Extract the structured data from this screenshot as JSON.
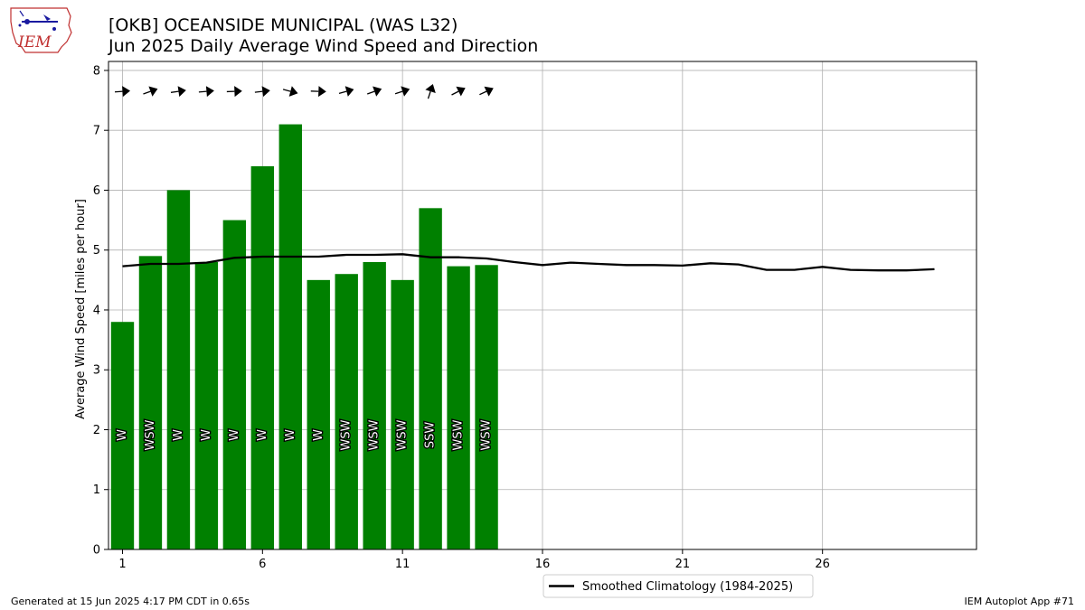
{
  "header": {
    "title_line1": "[OKB] OCEANSIDE MUNICIPAL (WAS L32)",
    "title_line2": "Jun 2025 Daily Average Wind Speed and Direction"
  },
  "logo": {
    "text": "IEM",
    "icon": "iem-iowa-logo-icon"
  },
  "footer": {
    "generated": "Generated at 15 Jun 2025 4:17 PM CDT in 0.65s",
    "app": "IEM Autoplot App #71"
  },
  "colors": {
    "bar": "#008000",
    "climo_line": "#000000",
    "grid": "#b0b0b0"
  },
  "chart_data": {
    "type": "bar",
    "ylabel": "Average Wind Speed [miles per hour]",
    "xlabel": "",
    "xlim": [
      0.5,
      31.5
    ],
    "ylim": [
      0,
      8.15
    ],
    "xticks": [
      1,
      6,
      11,
      16,
      21,
      26
    ],
    "yticks": [
      0,
      1,
      2,
      3,
      4,
      5,
      6,
      7,
      8
    ],
    "grid": true,
    "legend_placement": "bottom-center",
    "bars": {
      "days": [
        1,
        2,
        3,
        4,
        5,
        6,
        7,
        8,
        9,
        10,
        11,
        12,
        13,
        14
      ],
      "values": [
        3.8,
        4.9,
        6.0,
        4.8,
        5.5,
        6.4,
        7.1,
        4.5,
        4.6,
        4.8,
        4.5,
        5.7,
        4.73,
        4.75
      ],
      "direction_labels": [
        "W",
        "WSW",
        "W",
        "W",
        "W",
        "W",
        "W",
        "W",
        "WSW",
        "WSW",
        "WSW",
        "SSW",
        "WSW",
        "WSW"
      ],
      "arrow_direction_deg": [
        266,
        250,
        262,
        265,
        268,
        263,
        285,
        272,
        255,
        250,
        252,
        198,
        243,
        245
      ]
    },
    "series": [
      {
        "name": "Smoothed Climatology (1984-2025)",
        "x": [
          1,
          2,
          3,
          4,
          5,
          6,
          7,
          8,
          9,
          10,
          11,
          12,
          13,
          14,
          15,
          16,
          17,
          18,
          19,
          20,
          21,
          22,
          23,
          24,
          25,
          26,
          27,
          28,
          29,
          30
        ],
        "values": [
          4.73,
          4.77,
          4.77,
          4.79,
          4.87,
          4.89,
          4.89,
          4.89,
          4.92,
          4.92,
          4.93,
          4.88,
          4.88,
          4.86,
          4.8,
          4.75,
          4.79,
          4.77,
          4.75,
          4.75,
          4.74,
          4.78,
          4.76,
          4.67,
          4.67,
          4.72,
          4.67,
          4.66,
          4.66,
          4.68
        ]
      }
    ]
  }
}
